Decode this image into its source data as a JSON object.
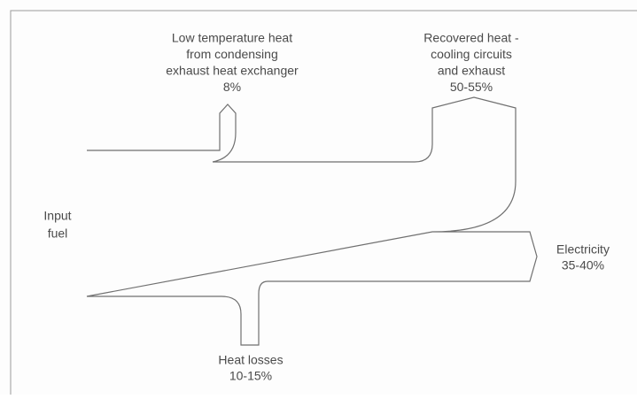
{
  "nodes": [
    {
      "label": [
        "Low temperature heat",
        "from condensing",
        "exhaust heat exchanger",
        "8%"
      ]
    },
    {
      "label": [
        "Recovered heat -",
        "cooling circuits",
        "and exhaust",
        "50-55%"
      ]
    },
    {
      "label": [
        "Input",
        "fuel"
      ]
    },
    {
      "label": [
        "Electricity",
        "35-40%"
      ]
    },
    {
      "label": [
        "Heat losses",
        "10-15%"
      ]
    }
  ]
}
